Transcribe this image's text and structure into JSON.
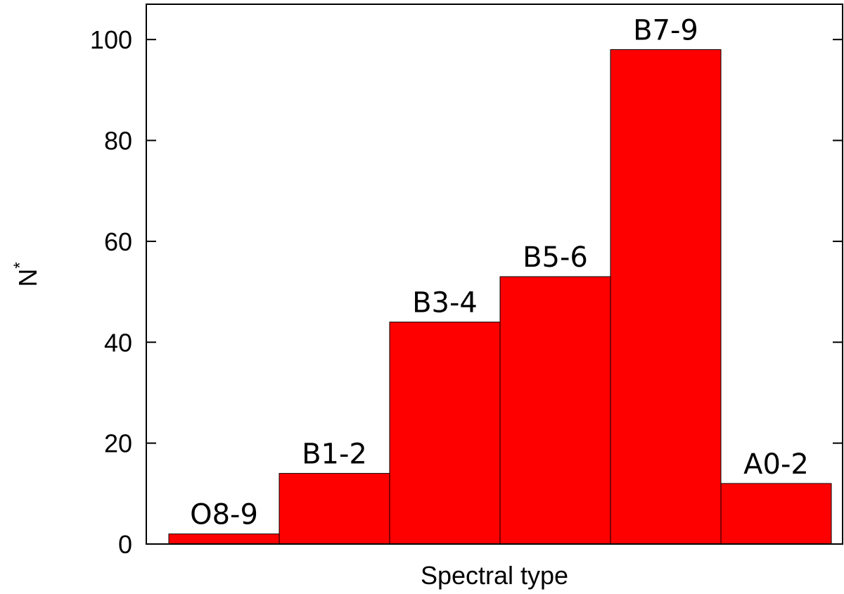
{
  "chart_data": {
    "type": "bar",
    "categories": [
      "O8-9",
      "B1-2",
      "B3-4",
      "B5-6",
      "B7-9",
      "A0-2"
    ],
    "values": [
      2,
      14,
      44,
      53,
      98,
      12
    ],
    "xlabel": "Spectral type",
    "ylabel": "N",
    "ylabel_superscript": "*",
    "ylim": [
      0,
      107
    ],
    "yticks": [
      0,
      20,
      40,
      60,
      80,
      100
    ],
    "ytick_labels": [
      "0",
      "20",
      "40",
      "60",
      "80",
      "100"
    ],
    "grid": false,
    "legend": "none",
    "bar_color": "#ff0000",
    "edge_color": "#000000"
  }
}
